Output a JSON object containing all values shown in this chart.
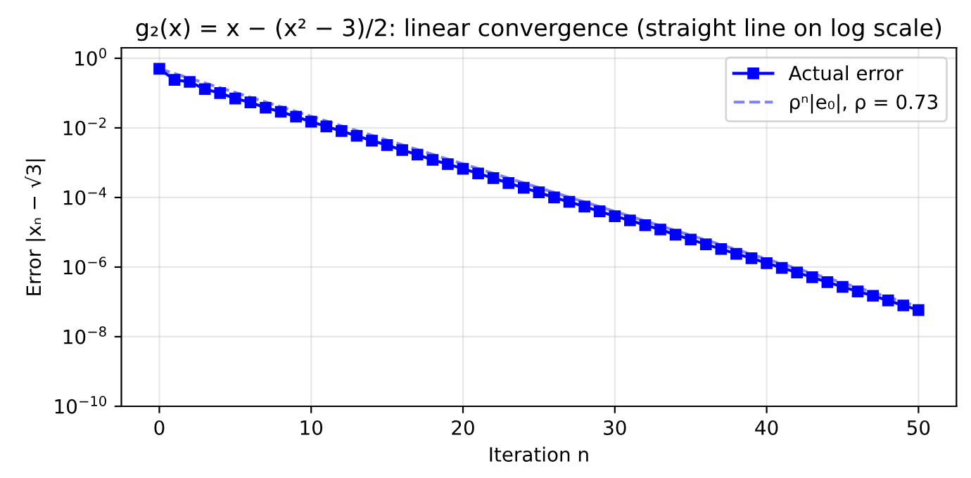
{
  "chart_data": {
    "type": "line",
    "title": "g₂(x) = x − (x² − 3)/2: linear convergence (straight line on log scale)",
    "xlabel": "Iteration n",
    "ylabel": "Error |xₙ − √3|",
    "series": [
      {
        "name": "Actual error",
        "color": "#0000ff",
        "marker": "square",
        "line_style": "solid",
        "x": [
          0,
          1,
          2,
          3,
          4,
          5,
          6,
          7,
          8,
          9,
          10,
          11,
          12,
          13,
          14,
          15,
          16,
          17,
          18,
          19,
          20,
          21,
          22,
          23,
          24,
          25,
          26,
          27,
          28,
          29,
          30,
          31,
          32,
          33,
          34,
          35,
          36,
          37,
          38,
          39,
          40,
          41,
          42,
          43,
          44,
          45,
          46,
          47,
          48,
          49,
          50
        ],
        "values": [
          0.5,
          0.24,
          0.21,
          0.13,
          0.1,
          0.07,
          0.054,
          0.038,
          0.029,
          0.021,
          0.015,
          0.011,
          0.0081,
          0.0059,
          0.0043,
          0.0032,
          0.0023,
          0.0017,
          0.0012,
          0.00091,
          0.00067,
          0.00049,
          0.00036,
          0.00026,
          0.00019,
          0.00014,
          0.0001,
          7.5e-05,
          5.5e-05,
          4e-05,
          2.9e-05,
          2.2e-05,
          1.6e-05,
          1.2e-05,
          8.5e-06,
          6.2e-06,
          4.5e-06,
          3.3e-06,
          2.4e-06,
          1.8e-06,
          1.3e-06,
          9.5e-07,
          7e-07,
          5.1e-07,
          3.7e-07,
          2.7e-07,
          2e-07,
          1.5e-07,
          1.1e-07,
          7.9e-08,
          5.8e-08
        ]
      },
      {
        "name": "ρⁿ|e₀|, ρ = 0.73",
        "color": "#8080ff",
        "marker": "none",
        "line_style": "dashed",
        "x": [
          0,
          50
        ],
        "values": [
          0.5,
          7.3e-08
        ]
      }
    ],
    "xlim": [
      -2.5,
      52.5
    ],
    "xticks": [
      0,
      10,
      20,
      30,
      40,
      50
    ],
    "ylim": [
      1e-10,
      2
    ],
    "yticks": [
      {
        "value": 1e-10,
        "label": "10$^{−10}$"
      },
      {
        "value": 1e-08,
        "label": "10$^{−8}$"
      },
      {
        "value": 1e-06,
        "label": "10$^{−6}$"
      },
      {
        "value": 0.0001,
        "label": "10$^{−4}$"
      },
      {
        "value": 0.01,
        "label": "10$^{−2}$"
      },
      {
        "value": 1,
        "label": "10$^{0}$"
      }
    ],
    "log": "y",
    "grid": true,
    "legend": "top right"
  }
}
